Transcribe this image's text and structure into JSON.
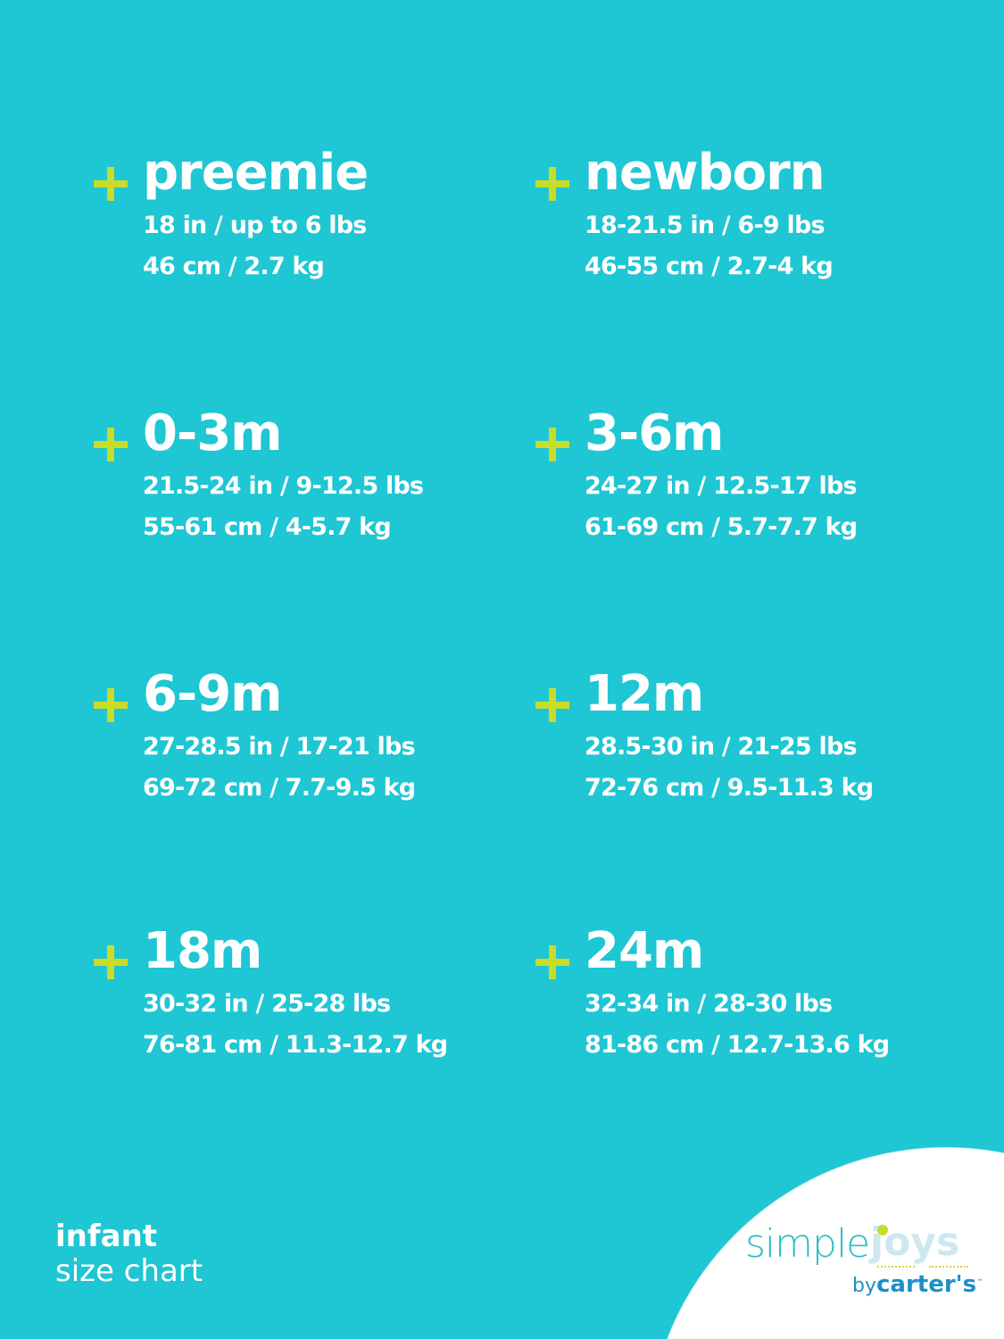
{
  "colors": {
    "background": "#1fc6d3",
    "accent": "#c8dc2a",
    "text": "#ffffff"
  },
  "sizes": [
    {
      "title": "preemie",
      "line1": "18 in / up to 6 lbs",
      "line2": "46 cm / 2.7 kg"
    },
    {
      "title": "newborn",
      "line1": "18-21.5 in / 6-9 lbs",
      "line2": "46-55 cm / 2.7-4 kg"
    },
    {
      "title": "0-3m",
      "line1": "21.5-24 in / 9-12.5 lbs",
      "line2": "55-61 cm / 4-5.7 kg"
    },
    {
      "title": "3-6m",
      "line1": "24-27 in / 12.5-17 lbs",
      "line2": "61-69 cm / 5.7-7.7 kg"
    },
    {
      "title": "6-9m",
      "line1": "27-28.5 in / 17-21 lbs",
      "line2": "69-72 cm / 7.7-9.5 kg"
    },
    {
      "title": "12m",
      "line1": "28.5-30 in / 21-25 lbs",
      "line2": "72-76 cm / 9.5-11.3 kg"
    },
    {
      "title": "18m",
      "line1": "30-32 in / 25-28 lbs",
      "line2": "76-81 cm / 11.3-12.7 kg"
    },
    {
      "title": "24m",
      "line1": "32-34 in / 28-30 lbs",
      "line2": "81-86 cm / 12.7-13.6 kg"
    }
  ],
  "footer": {
    "line1": "infant",
    "line2": "size chart"
  },
  "logo": {
    "simple": "simple",
    "joys": "joys",
    "by": "by",
    "brand": "carter's",
    "tm": "™"
  }
}
